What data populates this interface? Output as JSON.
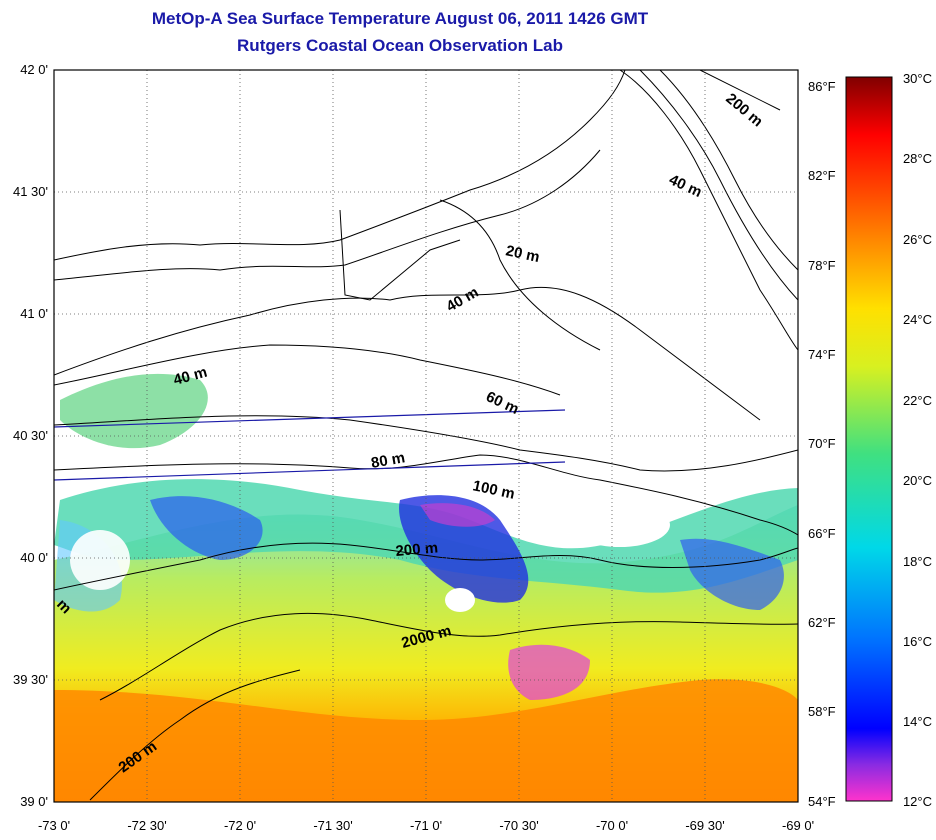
{
  "title_line1": "MetOp-A Sea Surface Temperature August 06, 2011 1426 GMT",
  "title_line2": "Rutgers Coastal Ocean Observation Lab",
  "lat_labels": [
    "42 0'",
    "41 30'",
    "41 0'",
    "40 30'",
    "40 0'",
    "39 30'",
    "39 0'"
  ],
  "lon_labels": [
    "-73 0'",
    "-72 30'",
    "-72 0'",
    "-71 30'",
    "-71 0'",
    "-70 30'",
    "-70 0'",
    "-69 30'",
    "-69 0'"
  ],
  "fahrenheit_labels": [
    "86°F",
    "82°F",
    "78°F",
    "74°F",
    "70°F",
    "66°F",
    "62°F",
    "58°F",
    "54°F"
  ],
  "celsius_labels": [
    "30°C",
    "28°C",
    "26°C",
    "24°C",
    "22°C",
    "20°C",
    "18°C",
    "16°C",
    "14°C",
    "12°C"
  ],
  "contour_labels": [
    "200 m",
    "40 m",
    "20 m",
    "40 m",
    "40 m",
    "60 m",
    "80 m",
    "100 m",
    "200 m",
    "2000 m",
    "200 m",
    "m"
  ],
  "colors": {
    "title": "#1a1aa8",
    "track_line": "#1a1aa8",
    "land": "#ffffff",
    "colorbar_stops": [
      "#ff33cc",
      "#6a0dad",
      "#0000ff",
      "#00a0ff",
      "#00e0d0",
      "#66e066",
      "#f0f000",
      "#ffa000",
      "#ff6000",
      "#ff0000",
      "#8b0000"
    ]
  }
}
